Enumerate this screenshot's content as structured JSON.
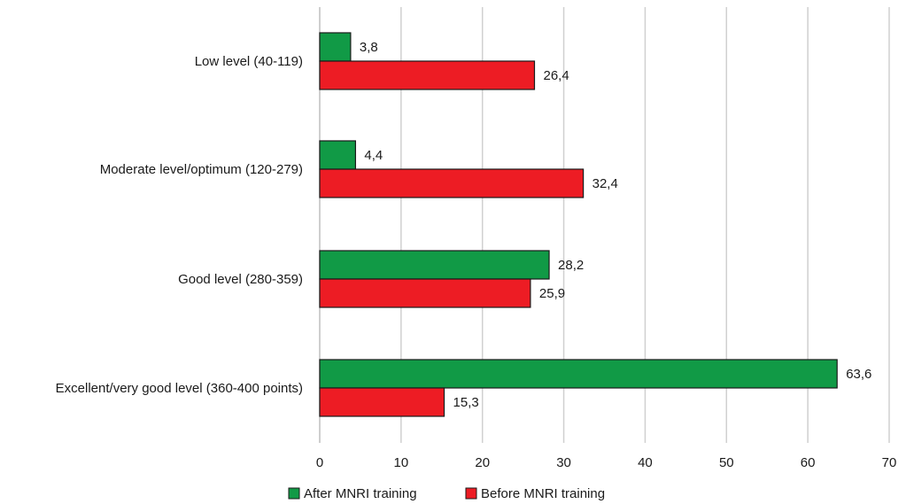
{
  "chart_data": {
    "type": "bar",
    "orientation": "horizontal",
    "categories": [
      "Low level (40-119)",
      "Moderate level/optimum (120-279)",
      "Good level (280-359)",
      "Excellent/very good level (360-400 points)"
    ],
    "series": [
      {
        "name": "After MNRI training",
        "color": "#119a46",
        "values": [
          3.8,
          4.4,
          28.2,
          63.6
        ],
        "labels": [
          "3,8",
          "4,4",
          "28,2",
          "63,6"
        ]
      },
      {
        "name": "Before MNRI training",
        "color": "#ed1c24",
        "values": [
          26.4,
          32.4,
          25.9,
          15.3
        ],
        "labels": [
          "26,4",
          "32,4",
          "25,9",
          "15,3"
        ]
      }
    ],
    "xlim": [
      0,
      70
    ],
    "xticks": [
      0,
      10,
      20,
      30,
      40,
      50,
      60,
      70
    ],
    "xtick_labels": [
      "0",
      "10",
      "20",
      "30",
      "40",
      "50",
      "60",
      "70"
    ],
    "grid": "vertical",
    "legend_position": "bottom",
    "title": "",
    "xlabel": "",
    "ylabel": ""
  }
}
